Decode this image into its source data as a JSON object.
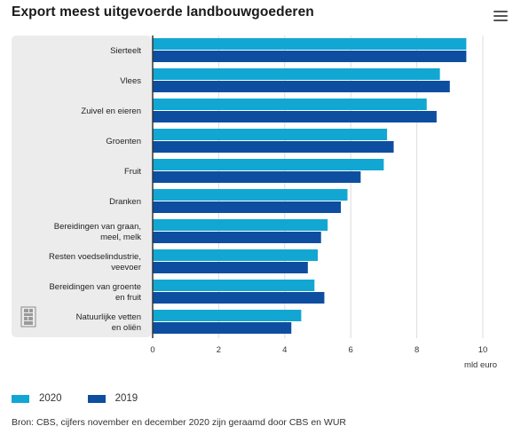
{
  "header": {
    "title": "Export meest uitgevoerde landbouwgoederen",
    "menu_icon": "hamburger-menu-icon"
  },
  "colors": {
    "series_2020": "#12a7d3",
    "series_2019": "#0e4ea0",
    "plot_bg": "#ececec",
    "grid": "#dcdcdc",
    "axis": "#333333"
  },
  "chart_data": {
    "type": "bar",
    "orientation": "horizontal",
    "categories": [
      [
        "Sierteelt"
      ],
      [
        "Vlees"
      ],
      [
        "Zuivel en eieren"
      ],
      [
        "Groenten"
      ],
      [
        "Fruit"
      ],
      [
        "Dranken"
      ],
      [
        "Bereidingen van graan,",
        "meel, melk"
      ],
      [
        "Resten voedselindustrie,",
        "veevoer"
      ],
      [
        "Bereidingen van groente",
        "en fruit"
      ],
      [
        "Natuurlijke vetten",
        "en oliën"
      ]
    ],
    "series": [
      {
        "name": "2020",
        "values": [
          9.5,
          8.7,
          8.3,
          7.1,
          7.0,
          5.9,
          5.3,
          5.0,
          4.9,
          4.5
        ]
      },
      {
        "name": "2019",
        "values": [
          9.5,
          9.0,
          8.6,
          7.3,
          6.3,
          5.7,
          5.1,
          4.7,
          5.2,
          4.2
        ]
      }
    ],
    "xlim": [
      0,
      10
    ],
    "xticks": [
      "0",
      "2",
      "4",
      "6",
      "8",
      "10"
    ],
    "xlabel": "mld euro",
    "grid": true,
    "legend_position": "bottom-left"
  },
  "footer": {
    "source": "Bron: CBS, cijfers november en december 2020 zijn geraamd door CBS en WUR",
    "logo_icon": "cbs-logo-icon"
  }
}
